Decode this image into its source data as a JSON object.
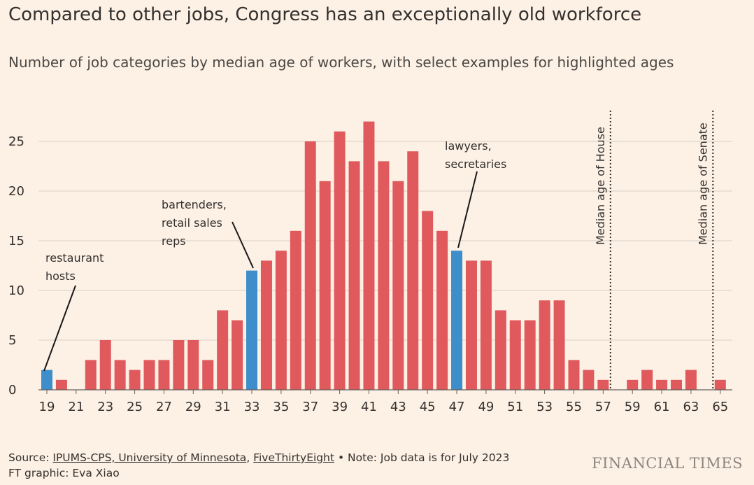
{
  "title": "Compared to other jobs, Congress has an exceptionally old workforce",
  "subtitle": "Number of job categories by median age of workers, with select examples for highlighted ages",
  "colors": {
    "background": "#fdf1e5",
    "bar": "#e05a5d",
    "highlight": "#3d8ecb",
    "grid": "#d9cfc6",
    "text": "#33302e"
  },
  "chart_data": {
    "type": "bar",
    "x": [
      19,
      20,
      21,
      22,
      23,
      24,
      25,
      26,
      27,
      28,
      29,
      30,
      31,
      32,
      33,
      34,
      35,
      36,
      37,
      38,
      39,
      40,
      41,
      42,
      43,
      44,
      45,
      46,
      47,
      48,
      49,
      50,
      51,
      52,
      53,
      54,
      55,
      56,
      57,
      58,
      59,
      60,
      61,
      62,
      63,
      64,
      65
    ],
    "values": [
      2,
      1,
      0,
      3,
      5,
      3,
      2,
      3,
      3,
      5,
      5,
      3,
      8,
      7,
      12,
      13,
      14,
      16,
      25,
      21,
      26,
      23,
      27,
      23,
      21,
      24,
      18,
      16,
      14,
      13,
      13,
      8,
      7,
      7,
      9,
      9,
      3,
      2,
      1,
      0,
      1,
      2,
      1,
      1,
      2,
      0,
      1
    ],
    "highlighted": [
      19,
      33,
      47
    ],
    "x_ticks": [
      "19",
      "21",
      "23",
      "25",
      "27",
      "29",
      "31",
      "33",
      "35",
      "37",
      "39",
      "41",
      "43",
      "45",
      "47",
      "49",
      "51",
      "53",
      "55",
      "57",
      "59",
      "61",
      "63",
      "65"
    ],
    "y_ticks": [
      "0",
      "5",
      "10",
      "15",
      "20",
      "25"
    ],
    "xlim": [
      19,
      65
    ],
    "ylim": [
      0,
      28
    ],
    "grid": "horizontal",
    "reference_lines": [
      {
        "x": 58,
        "label": "Median age of House"
      },
      {
        "x": 65,
        "label": "Median age of Senate"
      }
    ],
    "annotations": [
      {
        "target_x": 19,
        "lines": [
          "restaurant",
          "hosts"
        ]
      },
      {
        "target_x": 33,
        "lines": [
          "bartenders,",
          "retail sales",
          "reps"
        ]
      },
      {
        "target_x": 47,
        "lines": [
          "lawyers,",
          "secretaries"
        ]
      }
    ]
  },
  "footer": {
    "source_prefix": "Source: ",
    "source_link1": "IPUMS-CPS, University of Minnesota",
    "source_sep": ", ",
    "source_link2": "FiveThirtyEight",
    "note": " • Note: Job data is for July 2023",
    "credit": "FT graphic: Eva Xiao"
  },
  "brand": "FINANCIAL TIMES"
}
